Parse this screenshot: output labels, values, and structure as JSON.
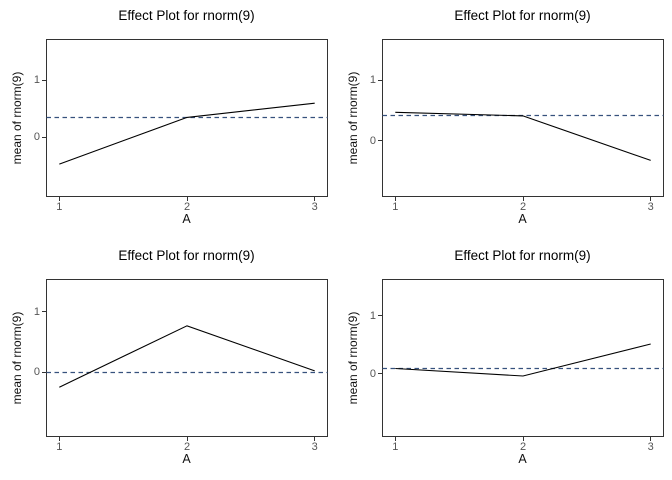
{
  "figure": {
    "background": "#ffffff",
    "rows": 2,
    "cols": 2
  },
  "colors": {
    "effect_line": "#000000",
    "dashed_mean_line": "#36517d",
    "panel_border": "#333333",
    "tick_mark": "#333333",
    "tick_label": "#555555",
    "title_text": "#000000"
  },
  "chart_data": [
    {
      "type": "line",
      "position": "top-left",
      "title": "Effect Plot for rnorm(9)",
      "xlabel": "A",
      "ylabel": "mean of rnorm(9)",
      "x": [
        1,
        2,
        3
      ],
      "series": [
        {
          "name": "effect",
          "values": [
            -0.47,
            0.35,
            0.6
          ]
        }
      ],
      "dashed_mean": 0.35,
      "xticks": [
        1,
        2,
        3
      ],
      "yticks": [
        0,
        1
      ],
      "xlim": [
        0.9,
        3.1
      ],
      "ylim": [
        -1.04,
        1.72
      ],
      "grid": false,
      "legend": "none"
    },
    {
      "type": "line",
      "position": "top-right",
      "title": "Effect Plot for rnorm(9)",
      "xlabel": "A",
      "ylabel": "mean of rnorm(9)",
      "x": [
        1,
        2,
        3
      ],
      "series": [
        {
          "name": "effect",
          "values": [
            0.47,
            0.41,
            -0.33
          ]
        }
      ],
      "dashed_mean": 0.41,
      "xticks": [
        1,
        2,
        3
      ],
      "yticks": [
        0,
        1
      ],
      "xlim": [
        0.9,
        3.1
      ],
      "ylim": [
        -0.93,
        1.68
      ],
      "grid": false,
      "legend": "none"
    },
    {
      "type": "line",
      "position": "bottom-left",
      "title": "Effect Plot for rnorm(9)",
      "xlabel": "A",
      "ylabel": "mean of rnorm(9)",
      "x": [
        1,
        2,
        3
      ],
      "series": [
        {
          "name": "effect",
          "values": [
            -0.25,
            0.77,
            0.02
          ]
        }
      ],
      "dashed_mean": 0.0,
      "xticks": [
        1,
        2,
        3
      ],
      "yticks": [
        0,
        1
      ],
      "xlim": [
        0.9,
        3.1
      ],
      "ylim": [
        -1.07,
        1.54
      ],
      "grid": false,
      "legend": "none"
    },
    {
      "type": "line",
      "position": "bottom-right",
      "title": "Effect Plot for rnorm(9)",
      "xlabel": "A",
      "ylabel": "mean of rnorm(9)",
      "x": [
        1,
        2,
        3
      ],
      "series": [
        {
          "name": "effect",
          "values": [
            0.09,
            -0.04,
            0.51
          ]
        }
      ],
      "dashed_mean": 0.09,
      "xticks": [
        1,
        2,
        3
      ],
      "yticks": [
        0,
        1
      ],
      "xlim": [
        0.9,
        3.1
      ],
      "ylim": [
        -1.08,
        1.62
      ],
      "grid": false,
      "legend": "none"
    }
  ]
}
